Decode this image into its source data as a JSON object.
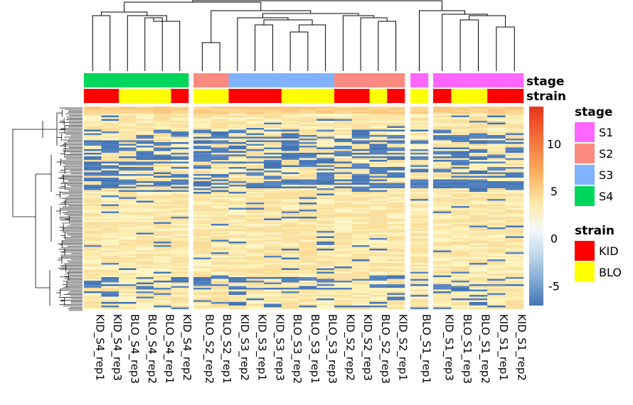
{
  "chart_data": {
    "type": "heatmap",
    "columns": [
      {
        "label": "KID_S4_rep1",
        "stage": "S4",
        "strain": "KID"
      },
      {
        "label": "KID_S4_rep3",
        "stage": "S4",
        "strain": "KID"
      },
      {
        "label": "BLO_S4_rep3",
        "stage": "S4",
        "strain": "BLO"
      },
      {
        "label": "BLO_S4_rep2",
        "stage": "S4",
        "strain": "BLO"
      },
      {
        "label": "BLO_S4_rep1",
        "stage": "S4",
        "strain": "BLO"
      },
      {
        "label": "KID_S4_rep2",
        "stage": "S4",
        "strain": "KID"
      },
      {
        "label": "BLO_S2_rep2",
        "stage": "S2",
        "strain": "BLO"
      },
      {
        "label": "BLO_S2_rep1",
        "stage": "S2",
        "strain": "BLO"
      },
      {
        "label": "KID_S3_rep2",
        "stage": "S3",
        "strain": "KID"
      },
      {
        "label": "KID_S3_rep1",
        "stage": "S3",
        "strain": "KID"
      },
      {
        "label": "KID_S3_rep3",
        "stage": "S3",
        "strain": "KID"
      },
      {
        "label": "BLO_S3_rep2",
        "stage": "S3",
        "strain": "BLO"
      },
      {
        "label": "BLO_S3_rep1",
        "stage": "S3",
        "strain": "BLO"
      },
      {
        "label": "BLO_S3_rep3",
        "stage": "S3",
        "strain": "BLO"
      },
      {
        "label": "KID_S2_rep2",
        "stage": "S2",
        "strain": "KID"
      },
      {
        "label": "KID_S2_rep3",
        "stage": "S2",
        "strain": "KID"
      },
      {
        "label": "BLO_S2_rep3",
        "stage": "S2",
        "strain": "BLO"
      },
      {
        "label": "KID_S2_rep1",
        "stage": "S2",
        "strain": "KID"
      },
      {
        "label": "BLO_S1_rep1",
        "stage": "S1",
        "strain": "BLO"
      },
      {
        "label": "KID_S1_rep3",
        "stage": "S1",
        "strain": "KID"
      },
      {
        "label": "BLO_S1_rep3",
        "stage": "S1",
        "strain": "BLO"
      },
      {
        "label": "BLO_S1_rep2",
        "stage": "S1",
        "strain": "BLO"
      },
      {
        "label": "KID_S1_rep1",
        "stage": "S1",
        "strain": "KID"
      },
      {
        "label": "KID_S1_rep2",
        "stage": "S1",
        "strain": "KID"
      }
    ],
    "column_splits": [
      6,
      18,
      19
    ],
    "annotations": [
      {
        "name": "stage",
        "key": "stage"
      },
      {
        "name": "strain",
        "key": "strain"
      }
    ],
    "stage_legend": {
      "title": "stage",
      "entries": [
        {
          "label": "S1",
          "color": "#FF66FF"
        },
        {
          "label": "S2",
          "color": "#FA8A80"
        },
        {
          "label": "S3",
          "color": "#7FB2FF"
        },
        {
          "label": "S4",
          "color": "#00D65C"
        }
      ]
    },
    "strain_legend": {
      "title": "strain",
      "entries": [
        {
          "label": "KID",
          "color": "#FF0000"
        },
        {
          "label": "BLO",
          "color": "#FFFF00"
        }
      ]
    },
    "color_scale": {
      "range": [
        -7,
        14
      ],
      "ticks": [
        "10",
        "5",
        "0",
        "-5"
      ],
      "tick_values": [
        10,
        5,
        0,
        -5
      ],
      "low_color": "#4575B4",
      "mid_color": "#FFFFFF",
      "high_color": "#E9331D"
    },
    "row_clusters": "many rows (several hundred), hierarchically clustered"
  }
}
